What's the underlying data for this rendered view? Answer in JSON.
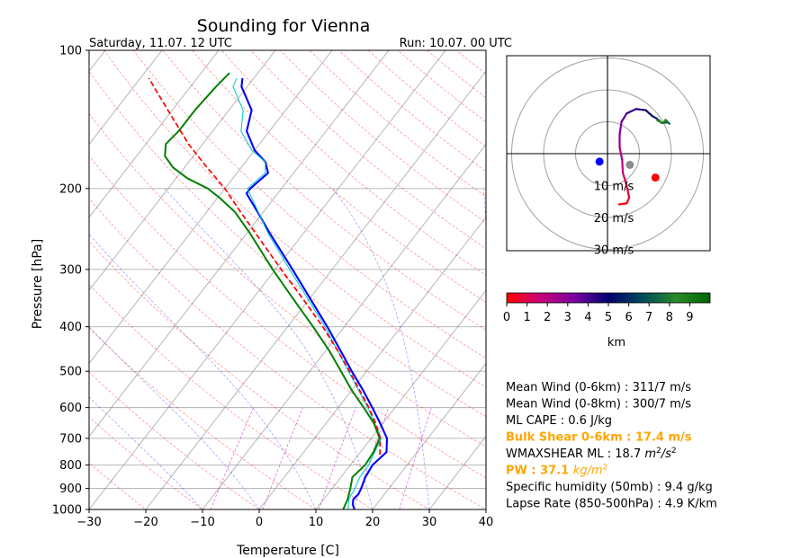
{
  "title": "Sounding for Vienna",
  "valid_time": "Saturday, 11.07. 12 UTC",
  "run_time": "Run: 10.07. 00 UTC",
  "colors": {
    "temperature": "#0000ff",
    "temperature_thin": "#00c8c8",
    "dewpoint": "#008000",
    "parcel": "#ff0000",
    "highlight": "#ffa500",
    "isotherm": "#808080"
  },
  "chart_data": [
    {
      "type": "line",
      "subtype": "skew-t",
      "xlabel": "Temperature [C]",
      "ylabel": "Pressure [hPa]",
      "xlim": [
        -30,
        40
      ],
      "ylim": [
        1000,
        100
      ],
      "yscale": "log",
      "grid": true,
      "x_ticks": [
        -30,
        -20,
        -10,
        0,
        10,
        20,
        30,
        40
      ],
      "y_ticks": [
        100,
        200,
        300,
        400,
        500,
        600,
        700,
        800,
        900,
        1000
      ],
      "series": [
        {
          "role": "temperature",
          "points": [
            [
              1000,
              16.8
            ],
            [
              975,
              15.8
            ],
            [
              950,
              15.2
            ],
            [
              925,
              15.4
            ],
            [
              900,
              15.1
            ],
            [
              850,
              14.3
            ],
            [
              800,
              13.9
            ],
            [
              750,
              14.6
            ],
            [
              700,
              12.8
            ],
            [
              650,
              9.6
            ],
            [
              600,
              6.0
            ],
            [
              550,
              2.0
            ],
            [
              500,
              -2.6
            ],
            [
              450,
              -7.5
            ],
            [
              400,
              -13.0
            ],
            [
              350,
              -19.5
            ],
            [
              300,
              -27.0
            ],
            [
              250,
              -36.0
            ],
            [
              225,
              -41.0
            ],
            [
              205,
              -45.5
            ],
            [
              200,
              -45.5
            ],
            [
              185,
              -44.5
            ],
            [
              175,
              -46.5
            ],
            [
              165,
              -50.0
            ],
            [
              150,
              -54.0
            ],
            [
              135,
              -56.0
            ],
            [
              120,
              -61.0
            ],
            [
              115,
              -62.0
            ]
          ]
        },
        {
          "role": "temperature_thin",
          "points": [
            [
              1000,
              15.7
            ],
            [
              950,
              14.4
            ],
            [
              900,
              14.0
            ],
            [
              850,
              13.3
            ],
            [
              800,
              13.2
            ],
            [
              700,
              11.8
            ],
            [
              600,
              5.2
            ],
            [
              500,
              -3.2
            ],
            [
              400,
              -13.4
            ],
            [
              300,
              -27.5
            ],
            [
              250,
              -36.3
            ],
            [
              200,
              -46.0
            ],
            [
              185,
              -45.0
            ],
            [
              175,
              -46.5
            ],
            [
              165,
              -50.5
            ],
            [
              150,
              -55.0
            ],
            [
              135,
              -57.5
            ],
            [
              120,
              -62.5
            ],
            [
              115,
              -63.0
            ]
          ]
        },
        {
          "role": "dewpoint",
          "points": [
            [
              1000,
              14.8
            ],
            [
              950,
              14.2
            ],
            [
              900,
              13.2
            ],
            [
              850,
              12.0
            ],
            [
              800,
              12.6
            ],
            [
              750,
              12.3
            ],
            [
              700,
              11.5
            ],
            [
              650,
              8.5
            ],
            [
              600,
              4.5
            ],
            [
              550,
              0.0
            ],
            [
              500,
              -4.5
            ],
            [
              450,
              -9.5
            ],
            [
              400,
              -15.5
            ],
            [
              350,
              -22.5
            ],
            [
              300,
              -30.5
            ],
            [
              250,
              -39.5
            ],
            [
              225,
              -45.0
            ],
            [
              210,
              -49.5
            ],
            [
              200,
              -53.0
            ],
            [
              190,
              -58.0
            ],
            [
              180,
              -62.0
            ],
            [
              170,
              -65.0
            ],
            [
              160,
              -66.5
            ],
            [
              150,
              -66.0
            ],
            [
              135,
              -66.0
            ],
            [
              120,
              -65.5
            ],
            [
              112,
              -65.0
            ]
          ]
        },
        {
          "role": "parcel",
          "points": [
            [
              760,
              13.8
            ],
            [
              700,
              11.6
            ],
            [
              650,
              8.8
            ],
            [
              600,
              5.4
            ],
            [
              550,
              1.4
            ],
            [
              500,
              -3.0
            ],
            [
              450,
              -8.0
            ],
            [
              400,
              -13.8
            ],
            [
              350,
              -20.8
            ],
            [
              300,
              -29.0
            ],
            [
              250,
              -38.5
            ],
            [
              225,
              -44.0
            ],
            [
              200,
              -50.0
            ],
            [
              180,
              -56.0
            ],
            [
              160,
              -62.5
            ],
            [
              140,
              -69.0
            ],
            [
              125,
              -74.5
            ],
            [
              115,
              -78.5
            ]
          ]
        }
      ]
    },
    {
      "type": "hodograph",
      "rings_ms": [
        10,
        20,
        30
      ],
      "ring_labels": [
        "10 m/s",
        "20 m/s",
        "30 m/s"
      ],
      "range_ms": 31,
      "colorbar": {
        "ticks": [
          "0",
          "1",
          "2",
          "3",
          "4",
          "5",
          "6",
          "7",
          "8",
          "9"
        ],
        "label": "km",
        "stops": [
          "#ff0000",
          "#c8007a",
          "#7a00a0",
          "#00006e",
          "#004a5a",
          "#2a8a2a",
          "#006400"
        ]
      },
      "trace": [
        {
          "u": 3.6,
          "v": -15.9,
          "h": 0.0
        },
        {
          "u": 6.0,
          "v": -15.6,
          "h": 0.3
        },
        {
          "u": 6.8,
          "v": -13.8,
          "h": 0.5
        },
        {
          "u": 6.0,
          "v": -10.0,
          "h": 1.0
        },
        {
          "u": 4.8,
          "v": -6.0,
          "h": 1.5
        },
        {
          "u": 4.6,
          "v": -2.0,
          "h": 2.0
        },
        {
          "u": 3.8,
          "v": 2.0,
          "h": 2.5
        },
        {
          "u": 3.8,
          "v": 6.0,
          "h": 3.0
        },
        {
          "u": 4.4,
          "v": 10.0,
          "h": 3.5
        },
        {
          "u": 6.0,
          "v": 12.6,
          "h": 4.0
        },
        {
          "u": 9.0,
          "v": 14.0,
          "h": 4.5
        },
        {
          "u": 12.0,
          "v": 13.6,
          "h": 5.0
        },
        {
          "u": 14.0,
          "v": 11.8,
          "h": 5.5
        },
        {
          "u": 15.4,
          "v": 11.0,
          "h": 6.0
        },
        {
          "u": 17.0,
          "v": 9.6,
          "h": 6.5
        },
        {
          "u": 18.8,
          "v": 9.8,
          "h": 7.0
        },
        {
          "u": 19.4,
          "v": 9.4,
          "h": 7.5
        },
        {
          "u": 18.2,
          "v": 10.6,
          "h": 8.0
        },
        {
          "u": 17.4,
          "v": 9.6,
          "h": 8.5
        },
        {
          "u": 15.6,
          "v": 10.4,
          "h": 9.0
        }
      ],
      "markers": [
        {
          "role": "left_mover",
          "u": -2.5,
          "v": -2.5,
          "color": "#0000ff"
        },
        {
          "role": "mean_wind",
          "u": 7.0,
          "v": -3.5,
          "color": "#8c8c8c"
        },
        {
          "role": "right_mover",
          "u": 15.0,
          "v": -7.5,
          "color": "#ff0000"
        }
      ]
    }
  ],
  "stats": [
    {
      "label": "Mean Wind (0-6km) : 311/7 m/s",
      "color": "#000000",
      "bold": false
    },
    {
      "label": "Mean Wind (0-8km) : 300/7 m/s",
      "color": "#000000",
      "bold": false
    },
    {
      "label": "ML CAPE : 0.6 J/kg",
      "color": "#000000",
      "bold": false
    },
    {
      "label": "Bulk Shear 0-6km : 17.4 m/s",
      "color": "#ffa500",
      "bold": true
    },
    {
      "label": "WMAXSHEAR ML : 18.7 ",
      "unit_base": "m",
      "unit_sup1": "2",
      "unit_mid": "/s",
      "unit_sup2": "2",
      "color": "#000000",
      "bold": false
    },
    {
      "label": "PW : 37.1 ",
      "unit_base": "kg/m",
      "unit_sup1": "2",
      "color": "#ffa500",
      "bold": true
    },
    {
      "label": "Specific humidity (50mb) : 9.4 g/kg",
      "color": "#000000",
      "bold": false
    },
    {
      "label": "Lapse Rate (850-500hPa) : 4.9 K/km",
      "color": "#000000",
      "bold": false
    }
  ]
}
